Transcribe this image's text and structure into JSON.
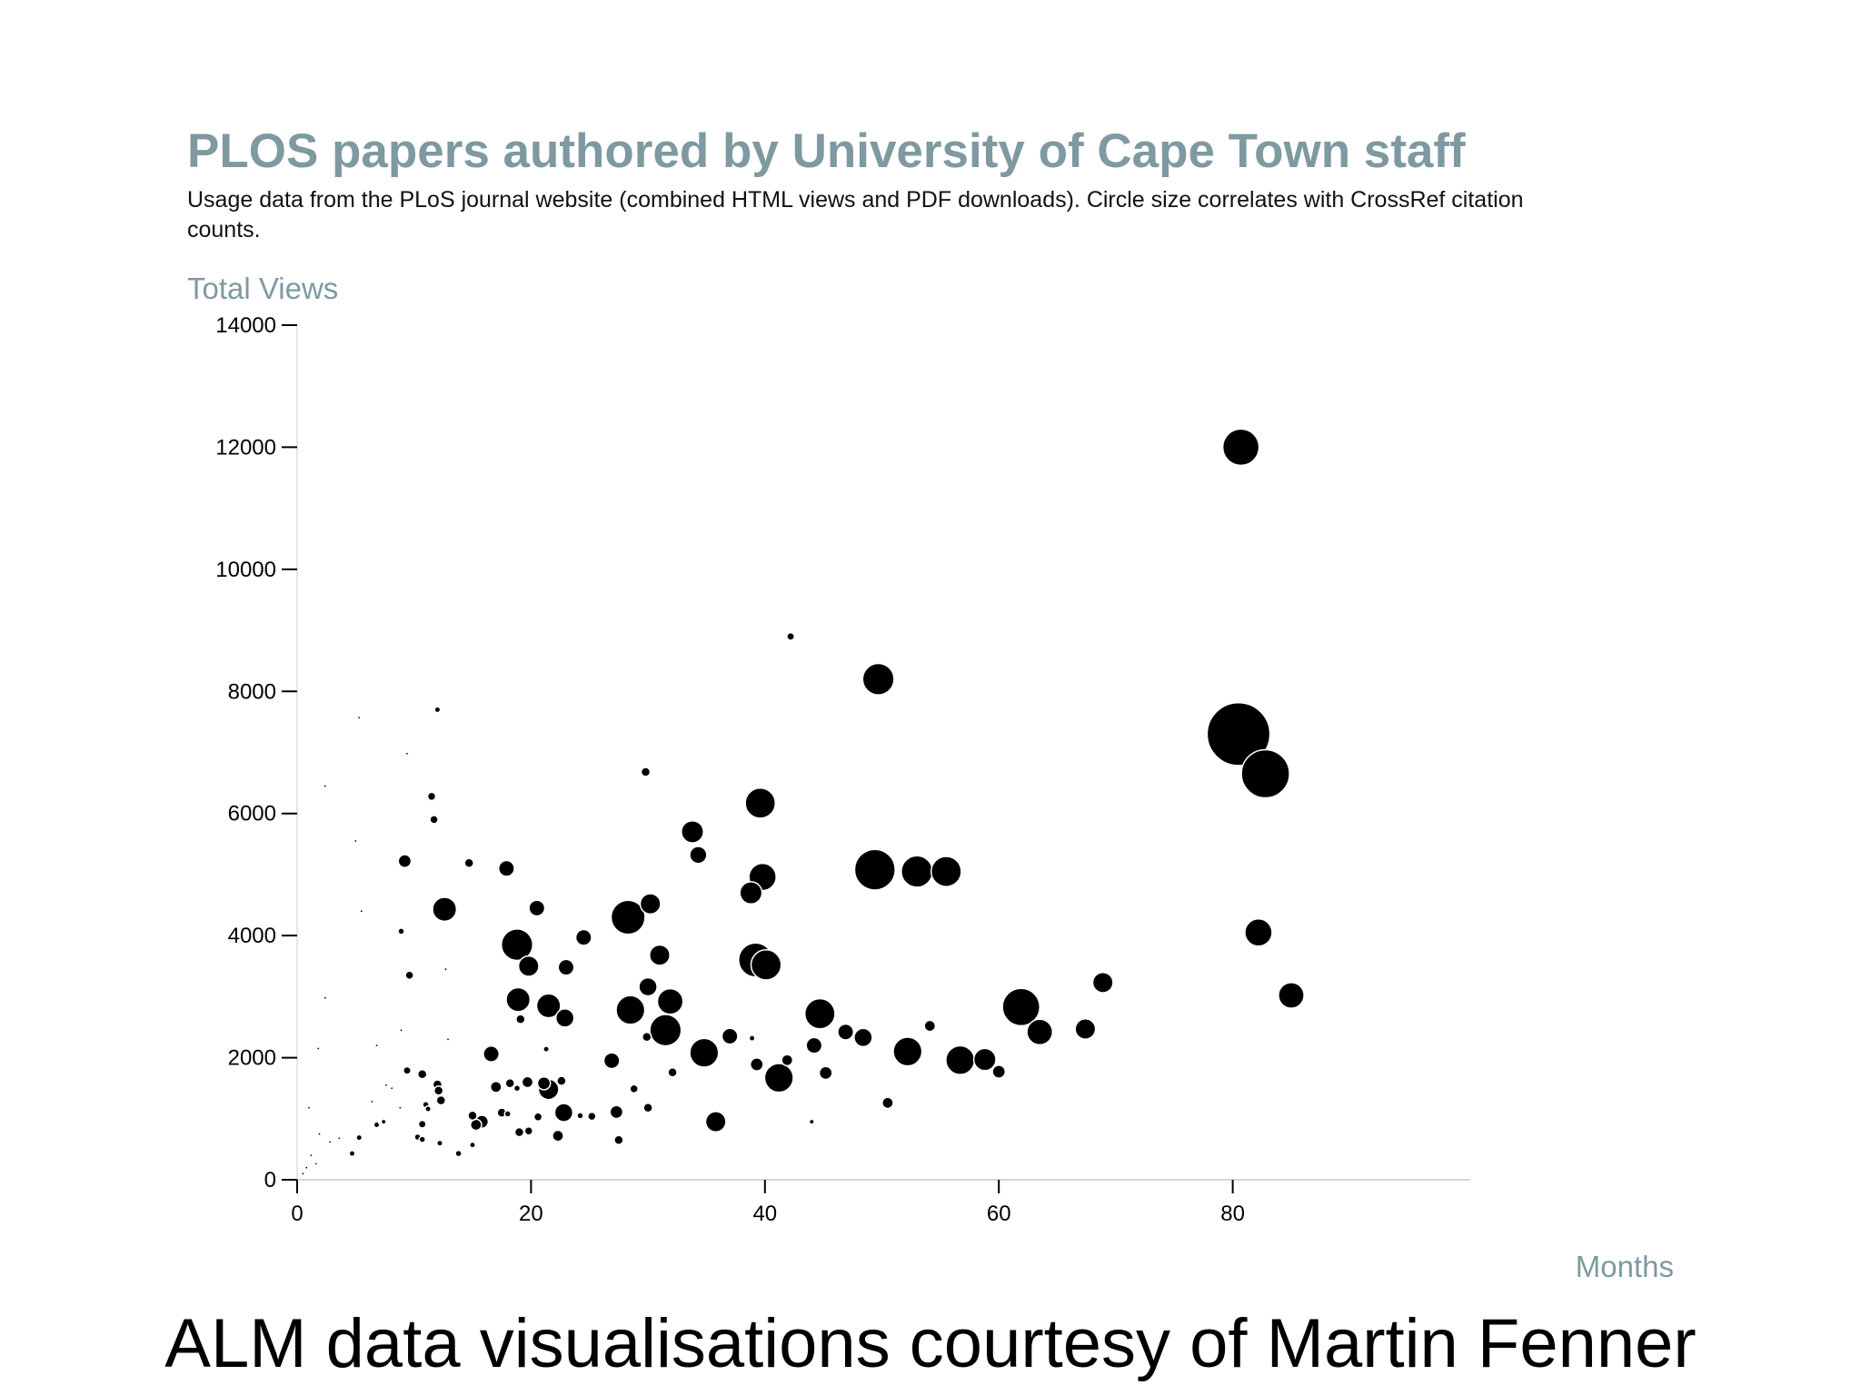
{
  "chart_data": {
    "type": "scatter",
    "title": "PLOS papers authored by University of Cape Town staff",
    "subtitle": "Usage data from the PLoS journal website (combined HTML views and PDF downloads). Circle size correlates with CrossRef citation counts.",
    "xlabel": "Months",
    "ylabel": "Total Views",
    "xlim": [
      0,
      85
    ],
    "ylim": [
      0,
      14000
    ],
    "x_ticks": [
      "0",
      "20",
      "40",
      "60",
      "80"
    ],
    "y_ticks": [
      "0",
      "2000",
      "4000",
      "6000",
      "8000",
      "10000",
      "12000",
      "14000"
    ],
    "grid": false,
    "size_encoding": "CrossRef citation count (approximate, from circle area)",
    "points": [
      {
        "x": 80.7,
        "y": 12000,
        "size": 16
      },
      {
        "x": 80.5,
        "y": 7300,
        "size": 48
      },
      {
        "x": 82.8,
        "y": 6650,
        "size": 28
      },
      {
        "x": 82.2,
        "y": 4050,
        "size": 9
      },
      {
        "x": 85.0,
        "y": 3020,
        "size": 8
      },
      {
        "x": 42.2,
        "y": 8900,
        "size": 0.7
      },
      {
        "x": 49.7,
        "y": 8200,
        "size": 12
      },
      {
        "x": 49.4,
        "y": 5080,
        "size": 20
      },
      {
        "x": 53.0,
        "y": 5050,
        "size": 12
      },
      {
        "x": 55.5,
        "y": 5050,
        "size": 11
      },
      {
        "x": 39.6,
        "y": 6170,
        "size": 11
      },
      {
        "x": 39.8,
        "y": 4960,
        "size": 9
      },
      {
        "x": 38.8,
        "y": 4700,
        "size": 6
      },
      {
        "x": 39.2,
        "y": 3600,
        "size": 14
      },
      {
        "x": 40.1,
        "y": 3520,
        "size": 11
      },
      {
        "x": 33.8,
        "y": 5700,
        "size": 6
      },
      {
        "x": 34.3,
        "y": 5320,
        "size": 3.5
      },
      {
        "x": 29.8,
        "y": 6680,
        "size": 1
      },
      {
        "x": 28.3,
        "y": 4300,
        "size": 14
      },
      {
        "x": 30.2,
        "y": 4520,
        "size": 5
      },
      {
        "x": 31.0,
        "y": 3680,
        "size": 5
      },
      {
        "x": 30.0,
        "y": 3160,
        "size": 4
      },
      {
        "x": 31.9,
        "y": 2920,
        "size": 8
      },
      {
        "x": 31.5,
        "y": 2450,
        "size": 12
      },
      {
        "x": 28.5,
        "y": 2780,
        "size": 10
      },
      {
        "x": 44.7,
        "y": 2720,
        "size": 11
      },
      {
        "x": 44.2,
        "y": 2200,
        "size": 3
      },
      {
        "x": 46.9,
        "y": 2420,
        "size": 3
      },
      {
        "x": 48.4,
        "y": 2330,
        "size": 4
      },
      {
        "x": 52.2,
        "y": 2100,
        "size": 10
      },
      {
        "x": 54.1,
        "y": 2520,
        "size": 1.5
      },
      {
        "x": 56.7,
        "y": 1960,
        "size": 10
      },
      {
        "x": 58.8,
        "y": 1970,
        "size": 6
      },
      {
        "x": 60.0,
        "y": 1770,
        "size": 2
      },
      {
        "x": 61.9,
        "y": 2830,
        "size": 17
      },
      {
        "x": 63.5,
        "y": 2420,
        "size": 8
      },
      {
        "x": 67.4,
        "y": 2470,
        "size": 5
      },
      {
        "x": 68.9,
        "y": 3230,
        "size": 5
      },
      {
        "x": 34.8,
        "y": 2080,
        "size": 10
      },
      {
        "x": 37.0,
        "y": 2350,
        "size": 3
      },
      {
        "x": 38.9,
        "y": 2320,
        "size": 0.4
      },
      {
        "x": 39.3,
        "y": 1890,
        "size": 2
      },
      {
        "x": 41.2,
        "y": 1670,
        "size": 10
      },
      {
        "x": 41.9,
        "y": 1960,
        "size": 1.5
      },
      {
        "x": 45.2,
        "y": 1750,
        "size": 2
      },
      {
        "x": 50.5,
        "y": 1260,
        "size": 1.5
      },
      {
        "x": 35.8,
        "y": 950,
        "size": 5
      },
      {
        "x": 44.0,
        "y": 950,
        "size": 0.2
      },
      {
        "x": 18.8,
        "y": 3850,
        "size": 12
      },
      {
        "x": 19.8,
        "y": 3500,
        "size": 5
      },
      {
        "x": 18.9,
        "y": 2950,
        "size": 7
      },
      {
        "x": 21.5,
        "y": 2850,
        "size": 7
      },
      {
        "x": 22.9,
        "y": 2650,
        "size": 4
      },
      {
        "x": 23.0,
        "y": 3480,
        "size": 3
      },
      {
        "x": 24.5,
        "y": 3970,
        "size": 3
      },
      {
        "x": 20.5,
        "y": 4450,
        "size": 3
      },
      {
        "x": 17.9,
        "y": 5100,
        "size": 3
      },
      {
        "x": 12.6,
        "y": 4430,
        "size": 7
      },
      {
        "x": 9.2,
        "y": 5220,
        "size": 2
      },
      {
        "x": 14.7,
        "y": 5190,
        "size": 1
      },
      {
        "x": 11.5,
        "y": 6280,
        "size": 0.8
      },
      {
        "x": 11.7,
        "y": 5900,
        "size": 0.8
      },
      {
        "x": 12.0,
        "y": 7700,
        "size": 0.3
      },
      {
        "x": 5.3,
        "y": 7570,
        "size": 0.05
      },
      {
        "x": 9.4,
        "y": 6980,
        "size": 0.05
      },
      {
        "x": 2.4,
        "y": 6450,
        "size": 0.05
      },
      {
        "x": 5.0,
        "y": 5550,
        "size": 0.05
      },
      {
        "x": 5.5,
        "y": 4400,
        "size": 0.05
      },
      {
        "x": 8.9,
        "y": 4070,
        "size": 0.5
      },
      {
        "x": 9.6,
        "y": 3350,
        "size": 0.8
      },
      {
        "x": 2.4,
        "y": 2980,
        "size": 0.05
      },
      {
        "x": 1.8,
        "y": 2150,
        "size": 0.05
      },
      {
        "x": 12.7,
        "y": 3450,
        "size": 0.05
      },
      {
        "x": 16.6,
        "y": 2060,
        "size": 3
      },
      {
        "x": 19.1,
        "y": 2630,
        "size": 1
      },
      {
        "x": 21.3,
        "y": 2140,
        "size": 0.4
      },
      {
        "x": 26.9,
        "y": 1950,
        "size": 3
      },
      {
        "x": 29.9,
        "y": 2340,
        "size": 1
      },
      {
        "x": 32.1,
        "y": 1760,
        "size": 1
      },
      {
        "x": 28.8,
        "y": 1490,
        "size": 0.8
      },
      {
        "x": 21.5,
        "y": 1480,
        "size": 5
      },
      {
        "x": 21.1,
        "y": 1580,
        "size": 2
      },
      {
        "x": 22.6,
        "y": 1620,
        "size": 1
      },
      {
        "x": 19.7,
        "y": 1600,
        "size": 1.5
      },
      {
        "x": 18.2,
        "y": 1580,
        "size": 1
      },
      {
        "x": 18.8,
        "y": 1500,
        "size": 0.5
      },
      {
        "x": 17.0,
        "y": 1520,
        "size": 1.5
      },
      {
        "x": 22.8,
        "y": 1100,
        "size": 4
      },
      {
        "x": 27.3,
        "y": 1110,
        "size": 2
      },
      {
        "x": 30.0,
        "y": 1180,
        "size": 1
      },
      {
        "x": 24.2,
        "y": 1050,
        "size": 0.5
      },
      {
        "x": 25.2,
        "y": 1040,
        "size": 0.8
      },
      {
        "x": 20.6,
        "y": 1030,
        "size": 0.8
      },
      {
        "x": 17.5,
        "y": 1100,
        "size": 1
      },
      {
        "x": 18.0,
        "y": 1080,
        "size": 0.5
      },
      {
        "x": 15.8,
        "y": 950,
        "size": 2
      },
      {
        "x": 15.3,
        "y": 900,
        "size": 1.5
      },
      {
        "x": 15.0,
        "y": 1050,
        "size": 1
      },
      {
        "x": 19.0,
        "y": 780,
        "size": 1
      },
      {
        "x": 19.8,
        "y": 800,
        "size": 0.8
      },
      {
        "x": 22.3,
        "y": 720,
        "size": 1.5
      },
      {
        "x": 27.5,
        "y": 650,
        "size": 1
      },
      {
        "x": 15.0,
        "y": 570,
        "size": 0.4
      },
      {
        "x": 13.8,
        "y": 430,
        "size": 0.5
      },
      {
        "x": 12.0,
        "y": 1560,
        "size": 1
      },
      {
        "x": 12.1,
        "y": 1460,
        "size": 1
      },
      {
        "x": 12.3,
        "y": 1300,
        "size": 1
      },
      {
        "x": 10.7,
        "y": 1730,
        "size": 1
      },
      {
        "x": 9.4,
        "y": 1790,
        "size": 0.7
      },
      {
        "x": 11.0,
        "y": 1230,
        "size": 0.5
      },
      {
        "x": 11.2,
        "y": 1160,
        "size": 0.4
      },
      {
        "x": 10.7,
        "y": 910,
        "size": 0.7
      },
      {
        "x": 10.3,
        "y": 700,
        "size": 0.5
      },
      {
        "x": 10.7,
        "y": 660,
        "size": 0.5
      },
      {
        "x": 12.2,
        "y": 600,
        "size": 0.3
      },
      {
        "x": 8.8,
        "y": 1180,
        "size": 0.05
      },
      {
        "x": 7.6,
        "y": 1550,
        "size": 0.05
      },
      {
        "x": 8.1,
        "y": 1500,
        "size": 0.05
      },
      {
        "x": 7.4,
        "y": 950,
        "size": 0.2
      },
      {
        "x": 6.8,
        "y": 900,
        "size": 0.4
      },
      {
        "x": 6.4,
        "y": 1280,
        "size": 0.05
      },
      {
        "x": 5.3,
        "y": 690,
        "size": 0.3
      },
      {
        "x": 4.7,
        "y": 430,
        "size": 0.4
      },
      {
        "x": 3.6,
        "y": 680,
        "size": 0.05
      },
      {
        "x": 2.8,
        "y": 620,
        "size": 0.05
      },
      {
        "x": 1.9,
        "y": 750,
        "size": 0.05
      },
      {
        "x": 1.6,
        "y": 260,
        "size": 0.05
      },
      {
        "x": 1.2,
        "y": 400,
        "size": 0.05
      },
      {
        "x": 0.8,
        "y": 200,
        "size": 0.05
      },
      {
        "x": 0.5,
        "y": 100,
        "size": 0.05
      },
      {
        "x": 1.0,
        "y": 1180,
        "size": 0.05
      },
      {
        "x": 8.9,
        "y": 2450,
        "size": 0.05
      },
      {
        "x": 12.9,
        "y": 2300,
        "size": 0.05
      },
      {
        "x": 6.8,
        "y": 2200,
        "size": 0.05
      }
    ]
  },
  "caption": "ALM data visualisations courtesy of Martin Fenner"
}
